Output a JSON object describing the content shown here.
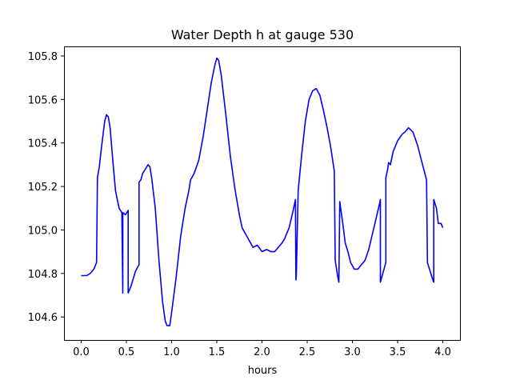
{
  "chart_data": {
    "type": "line",
    "title": "Water Depth h at gauge 530",
    "xlabel": "hours",
    "ylabel": "",
    "xlim": [
      -0.19,
      4.19
    ],
    "ylim": [
      104.494,
      105.844
    ],
    "xticks": [
      0.0,
      0.5,
      1.0,
      1.5,
      2.0,
      2.5,
      3.0,
      3.5,
      4.0
    ],
    "xtick_labels": [
      "0.0",
      "0.5",
      "1.0",
      "1.5",
      "2.0",
      "2.5",
      "3.0",
      "3.5",
      "4.0"
    ],
    "yticks": [
      104.6,
      104.8,
      105.0,
      105.2,
      105.4,
      105.6,
      105.8
    ],
    "ytick_labels": [
      "104.6",
      "104.8",
      "105.0",
      "105.2",
      "105.4",
      "105.6",
      "105.8"
    ],
    "grid": false,
    "series": [
      {
        "color": "#0000ff",
        "points": [
          [
            0.0,
            104.79
          ],
          [
            0.06,
            104.79
          ],
          [
            0.1,
            104.8
          ],
          [
            0.14,
            104.82
          ],
          [
            0.17,
            104.85
          ],
          [
            0.18,
            105.24
          ],
          [
            0.2,
            105.29
          ],
          [
            0.23,
            105.4
          ],
          [
            0.26,
            105.5
          ],
          [
            0.28,
            105.53
          ],
          [
            0.3,
            105.52
          ],
          [
            0.32,
            105.47
          ],
          [
            0.35,
            105.32
          ],
          [
            0.38,
            105.18
          ],
          [
            0.42,
            105.1
          ],
          [
            0.45,
            105.08
          ],
          [
            0.46,
            104.71
          ],
          [
            0.46,
            105.08
          ],
          [
            0.49,
            105.07
          ],
          [
            0.52,
            105.09
          ],
          [
            0.52,
            104.71
          ],
          [
            0.55,
            104.74
          ],
          [
            0.6,
            104.81
          ],
          [
            0.64,
            104.84
          ],
          [
            0.64,
            105.22
          ],
          [
            0.66,
            105.23
          ],
          [
            0.68,
            105.26
          ],
          [
            0.71,
            105.28
          ],
          [
            0.74,
            105.3
          ],
          [
            0.76,
            105.29
          ],
          [
            0.78,
            105.24
          ],
          [
            0.82,
            105.1
          ],
          [
            0.86,
            104.86
          ],
          [
            0.9,
            104.67
          ],
          [
            0.93,
            104.58
          ],
          [
            0.95,
            104.56
          ],
          [
            0.98,
            104.56
          ],
          [
            1.0,
            104.62
          ],
          [
            1.05,
            104.78
          ],
          [
            1.1,
            104.97
          ],
          [
            1.15,
            105.1
          ],
          [
            1.19,
            105.18
          ],
          [
            1.21,
            105.23
          ],
          [
            1.25,
            105.26
          ],
          [
            1.3,
            105.32
          ],
          [
            1.35,
            105.43
          ],
          [
            1.4,
            105.57
          ],
          [
            1.44,
            105.68
          ],
          [
            1.48,
            105.76
          ],
          [
            1.5,
            105.79
          ],
          [
            1.52,
            105.78
          ],
          [
            1.55,
            105.71
          ],
          [
            1.6,
            105.53
          ],
          [
            1.65,
            105.34
          ],
          [
            1.7,
            105.19
          ],
          [
            1.75,
            105.07
          ],
          [
            1.78,
            105.01
          ],
          [
            1.82,
            104.98
          ],
          [
            1.86,
            104.95
          ],
          [
            1.9,
            104.92
          ],
          [
            1.95,
            104.93
          ],
          [
            2.0,
            104.9
          ],
          [
            2.05,
            104.91
          ],
          [
            2.1,
            104.9
          ],
          [
            2.14,
            104.9
          ],
          [
            2.18,
            104.92
          ],
          [
            2.22,
            104.94
          ],
          [
            2.25,
            104.96
          ],
          [
            2.3,
            105.01
          ],
          [
            2.34,
            105.08
          ],
          [
            2.37,
            105.14
          ],
          [
            2.375,
            104.77
          ],
          [
            2.38,
            104.79
          ],
          [
            2.4,
            105.18
          ],
          [
            2.44,
            105.35
          ],
          [
            2.48,
            105.5
          ],
          [
            2.52,
            105.6
          ],
          [
            2.56,
            105.64
          ],
          [
            2.6,
            105.65
          ],
          [
            2.64,
            105.62
          ],
          [
            2.68,
            105.55
          ],
          [
            2.72,
            105.47
          ],
          [
            2.76,
            105.38
          ],
          [
            2.8,
            105.27
          ],
          [
            2.81,
            104.86
          ],
          [
            2.84,
            104.78
          ],
          [
            2.85,
            104.76
          ],
          [
            2.86,
            105.13
          ],
          [
            2.9,
            105.01
          ],
          [
            2.92,
            104.94
          ],
          [
            2.95,
            104.9
          ],
          [
            2.98,
            104.85
          ],
          [
            3.02,
            104.82
          ],
          [
            3.06,
            104.82
          ],
          [
            3.1,
            104.84
          ],
          [
            3.14,
            104.86
          ],
          [
            3.18,
            104.91
          ],
          [
            3.22,
            104.98
          ],
          [
            3.26,
            105.05
          ],
          [
            3.3,
            105.12
          ],
          [
            3.31,
            105.14
          ],
          [
            3.31,
            104.76
          ],
          [
            3.37,
            104.85
          ],
          [
            3.37,
            105.24
          ],
          [
            3.39,
            105.28
          ],
          [
            3.4,
            105.31
          ],
          [
            3.42,
            105.3
          ],
          [
            3.45,
            105.36
          ],
          [
            3.5,
            105.41
          ],
          [
            3.55,
            105.44
          ],
          [
            3.58,
            105.45
          ],
          [
            3.62,
            105.47
          ],
          [
            3.67,
            105.45
          ],
          [
            3.72,
            105.39
          ],
          [
            3.77,
            105.31
          ],
          [
            3.82,
            105.23
          ],
          [
            3.83,
            104.85
          ],
          [
            3.86,
            104.81
          ],
          [
            3.89,
            104.77
          ],
          [
            3.9,
            104.76
          ],
          [
            3.9,
            105.14
          ],
          [
            3.93,
            105.1
          ],
          [
            3.95,
            105.03
          ],
          [
            3.98,
            105.03
          ],
          [
            4.0,
            105.01
          ]
        ]
      }
    ]
  }
}
